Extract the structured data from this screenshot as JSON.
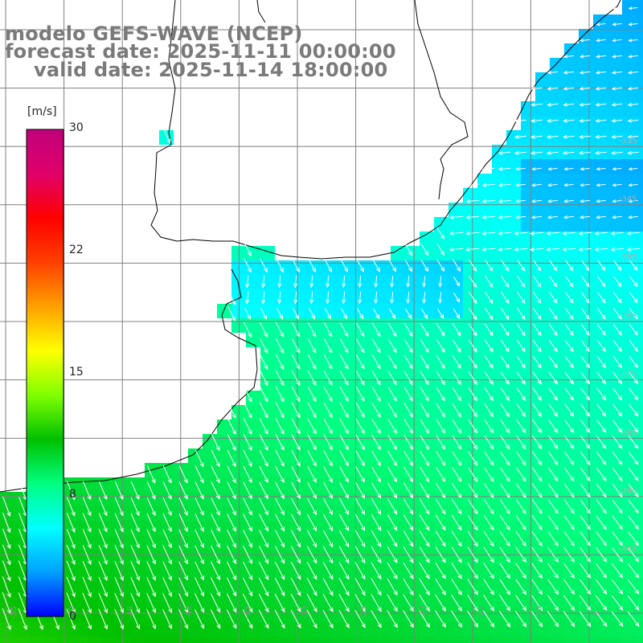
{
  "title": {
    "line1": "modelo GEFS-WAVE (NCEP)",
    "line2": "forecast date: 2025-11-11 00:00:00",
    "line3": "valid date: 2025-11-14 18:00:00"
  },
  "colorbar": {
    "unit": "[m/s]",
    "ticks": [
      "30",
      "22",
      "15",
      "8",
      "0"
    ],
    "tick_values": [
      30,
      22,
      15,
      8,
      0
    ],
    "colors": [
      "#0000ff",
      "#00a0ff",
      "#00ffff",
      "#00ff80",
      "#00c000",
      "#80ff00",
      "#ffff00",
      "#ffa000",
      "#ff4000",
      "#ff0000",
      "#e0006a",
      "#c0007a"
    ]
  },
  "map": {
    "lon_labels": [
      "-55",
      "-50",
      "-45",
      "-40",
      "-35",
      "-30",
      "-25",
      "-20",
      "-15",
      "-10",
      "-5"
    ],
    "lat_labels": [
      "-33S",
      "-34S",
      "-35S",
      "-36S",
      "-37S",
      "-38S",
      "-39S",
      "-40S"
    ],
    "land_color": "#ffffff",
    "grid_color": "#808080",
    "arrow_color": "#ffffff"
  }
}
